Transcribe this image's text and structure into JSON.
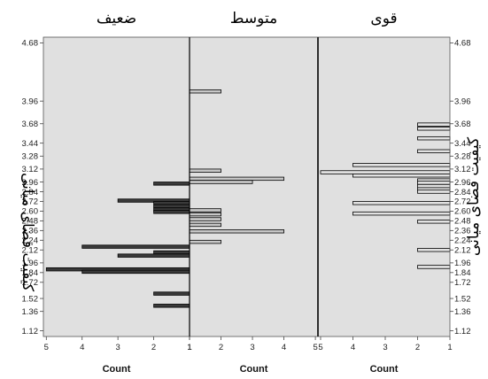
{
  "chart_data": {
    "type": "bar",
    "orientation": "horizontal",
    "layout": "back-to-back population pyramid, three panels",
    "y_label": "کیفیت فضای میانی",
    "y_ticks": [
      "4.68",
      "3.96",
      "3.68",
      "3.44",
      "3.28",
      "3.12",
      "2.96",
      "2.84",
      "2.72",
      "2.60",
      "2.48",
      "2.36",
      "2.24",
      "2.12",
      "1.96",
      "1.84",
      "1.72",
      "1.52",
      "1.36",
      "1.12"
    ],
    "panels": [
      {
        "title": "ضعیف",
        "direction": "left",
        "x_label": "Count",
        "x_ticks": [
          5,
          4,
          3,
          2,
          1
        ],
        "xlim": [
          1,
          5
        ],
        "bar_color": "#3a3a3a",
        "bars": [
          {
            "y": 2.94,
            "value": 2
          },
          {
            "y": 2.73,
            "value": 3
          },
          {
            "y": 2.7,
            "value": 2
          },
          {
            "y": 2.66,
            "value": 2
          },
          {
            "y": 2.62,
            "value": 2
          },
          {
            "y": 2.59,
            "value": 2
          },
          {
            "y": 2.16,
            "value": 4
          },
          {
            "y": 2.09,
            "value": 2
          },
          {
            "y": 2.05,
            "value": 3
          },
          {
            "y": 1.88,
            "value": 5
          },
          {
            "y": 1.85,
            "value": 4
          },
          {
            "y": 1.58,
            "value": 2
          },
          {
            "y": 1.43,
            "value": 2
          }
        ]
      },
      {
        "title": "متوسط",
        "direction": "right",
        "x_label": "Count",
        "x_ticks": [
          1,
          2,
          3,
          4,
          5
        ],
        "xlim": [
          1,
          5
        ],
        "bar_color": "#c8c8c8",
        "bars": [
          {
            "y": 4.08,
            "value": 2
          },
          {
            "y": 3.1,
            "value": 2
          },
          {
            "y": 3.0,
            "value": 4
          },
          {
            "y": 2.96,
            "value": 3
          },
          {
            "y": 2.61,
            "value": 2
          },
          {
            "y": 2.56,
            "value": 2
          },
          {
            "y": 2.5,
            "value": 2
          },
          {
            "y": 2.43,
            "value": 2
          },
          {
            "y": 2.35,
            "value": 4
          },
          {
            "y": 2.22,
            "value": 2
          }
        ]
      },
      {
        "title": "قوی",
        "direction": "left",
        "x_label": "Count",
        "x_ticks": [
          5,
          4,
          3,
          2,
          1
        ],
        "xlim": [
          1,
          5
        ],
        "bar_color": "#e2e2e2",
        "bars": [
          {
            "y": 3.67,
            "value": 2
          },
          {
            "y": 3.62,
            "value": 2
          },
          {
            "y": 3.5,
            "value": 2
          },
          {
            "y": 3.34,
            "value": 2
          },
          {
            "y": 3.17,
            "value": 4
          },
          {
            "y": 3.08,
            "value": 5
          },
          {
            "y": 3.04,
            "value": 4
          },
          {
            "y": 2.98,
            "value": 2
          },
          {
            "y": 2.95,
            "value": 2
          },
          {
            "y": 2.91,
            "value": 2
          },
          {
            "y": 2.87,
            "value": 2
          },
          {
            "y": 2.84,
            "value": 2
          },
          {
            "y": 2.7,
            "value": 4
          },
          {
            "y": 2.57,
            "value": 4
          },
          {
            "y": 2.47,
            "value": 2
          },
          {
            "y": 2.12,
            "value": 2
          },
          {
            "y": 1.91,
            "value": 2
          }
        ]
      }
    ]
  }
}
